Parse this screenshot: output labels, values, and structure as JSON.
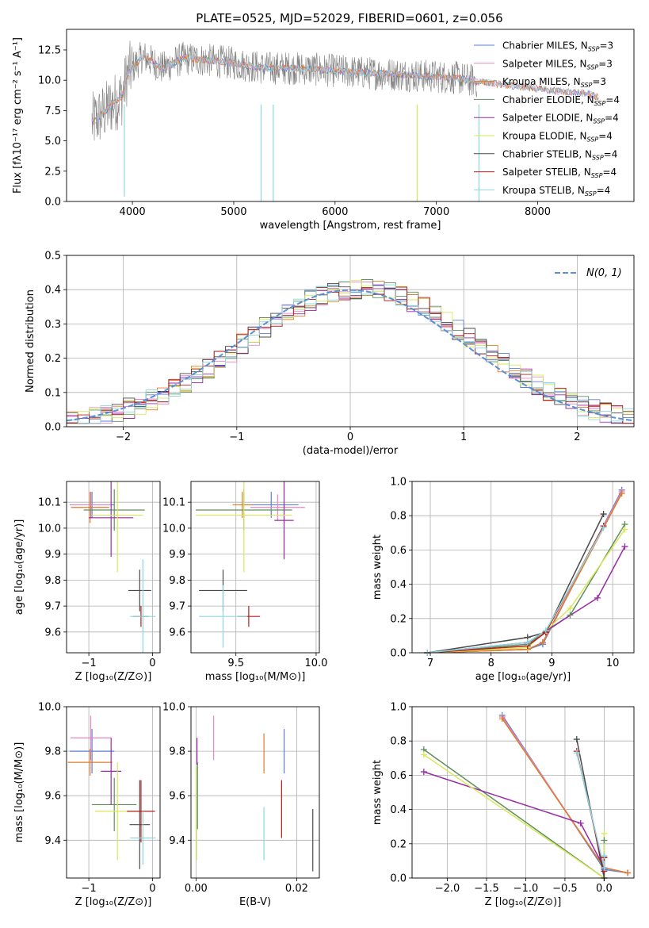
{
  "title": "PLATE=0525, MJD=52029, FIBERID=0601, z=0.056",
  "series": [
    {
      "name_pre": "Chabrier MILES, N",
      "name_sub": "SSP",
      "name_post": "=3",
      "color": "#5a7fd6"
    },
    {
      "name_pre": "Salpeter MILES, N",
      "name_sub": "SSP",
      "name_post": "=3",
      "color": "#e985c2"
    },
    {
      "name_pre": "Kroupa MILES, N",
      "name_sub": "SSP",
      "name_post": "=3",
      "color": "#e07b28"
    },
    {
      "name_pre": "Chabrier ELODIE, N",
      "name_sub": "SSP",
      "name_post": "=4",
      "color": "#5f8f5f"
    },
    {
      "name_pre": "Salpeter ELODIE, N",
      "name_sub": "SSP",
      "name_post": "=4",
      "color": "#9a2ba6"
    },
    {
      "name_pre": "Kroupa ELODIE, N",
      "name_sub": "SSP",
      "name_post": "=4",
      "color": "#d8e85a"
    },
    {
      "name_pre": "Chabrier STELIB, N",
      "name_sub": "SSP",
      "name_post": "=4",
      "color": "#4a4a4a"
    },
    {
      "name_pre": "Salpeter STELIB, N",
      "name_sub": "SSP",
      "name_post": "=4",
      "color": "#b51c1c"
    },
    {
      "name_pre": "Kroupa STELIB, N",
      "name_sub": "SSP",
      "name_post": "=4",
      "color": "#8fd6e0"
    }
  ],
  "data_color": "#808080",
  "gauss_color": "#5b8fd6",
  "chart_data": [
    {
      "id": "spectrum",
      "type": "line",
      "xlabel": "wavelength [Angstrom, rest frame]",
      "ylabel": "Flux [fλ10⁻¹⁷ erg cm⁻² s⁻¹ A⁻¹]",
      "xlim": [
        3350,
        8950
      ],
      "ylim": [
        0,
        14.2
      ],
      "xticks": [
        4000,
        5000,
        6000,
        7000,
        8000
      ],
      "yticks": [
        0.0,
        2.5,
        5.0,
        7.5,
        10.0,
        12.5
      ],
      "continuum": [
        [
          3600,
          6.5
        ],
        [
          3700,
          7.2
        ],
        [
          3800,
          8.0
        ],
        [
          3900,
          8.7
        ],
        [
          3950,
          10.5
        ],
        [
          4000,
          11.0
        ],
        [
          4100,
          12.0
        ],
        [
          4200,
          11.5
        ],
        [
          4300,
          11.0
        ],
        [
          4500,
          11.8
        ],
        [
          4800,
          11.6
        ],
        [
          5000,
          11.4
        ],
        [
          5300,
          11.0
        ],
        [
          5600,
          11.0
        ],
        [
          6000,
          10.8
        ],
        [
          6300,
          10.6
        ],
        [
          6600,
          10.5
        ],
        [
          7000,
          10.3
        ],
        [
          7200,
          10.2
        ],
        [
          7400,
          9.9
        ],
        [
          7800,
          9.5
        ],
        [
          8200,
          9.1
        ],
        [
          8500,
          8.9
        ],
        [
          8600,
          8.6
        ]
      ],
      "data_range": [
        3600,
        7400
      ],
      "data_noise": 1.4,
      "dips": [
        [
          3920,
          0.4
        ],
        [
          5270,
          0.0
        ],
        [
          5390,
          0.0
        ],
        [
          6810,
          0.0
        ],
        [
          7420,
          0.0
        ]
      ]
    },
    {
      "id": "residuals",
      "type": "area",
      "xlabel": "(data-model)/error",
      "ylabel": "Normed distribution",
      "xlim": [
        -2.5,
        2.5
      ],
      "ylim": [
        0,
        0.5
      ],
      "xticks": [
        -2,
        -1,
        0,
        1,
        2
      ],
      "yticks": [
        0.0,
        0.1,
        0.2,
        0.3,
        0.4,
        0.5
      ],
      "gauss_label": "N(0, 1)",
      "bin_width": 0.1,
      "bins_start": -2.5
    },
    {
      "id": "age_vs_z",
      "type": "scatter",
      "xlabel": "Z [log₁₀(Z/Z⊙)]",
      "ylabel": "age  [log₁₀(age/yr)]",
      "xlim": [
        -1.35,
        0.12
      ],
      "ylim": [
        9.52,
        10.18
      ],
      "xticks": [
        -1,
        0
      ],
      "yticks": [
        9.6,
        9.7,
        9.8,
        9.9,
        10.0,
        10.1
      ],
      "points": [
        {
          "s": 0,
          "x": -0.95,
          "y": 10.09,
          "dx": 0.35,
          "dy": 0.05
        },
        {
          "s": 1,
          "x": -0.97,
          "y": 10.09,
          "dx": 0.32,
          "dy": 0.05
        },
        {
          "s": 2,
          "x": -0.98,
          "y": 10.08,
          "dx": 0.3,
          "dy": 0.06
        },
        {
          "s": 3,
          "x": -0.6,
          "y": 10.07,
          "dx": 0.48,
          "dy": 0.08
        },
        {
          "s": 4,
          "x": -0.65,
          "y": 10.04,
          "dx": 0.35,
          "dy": 0.15
        },
        {
          "s": 5,
          "x": -0.55,
          "y": 10.05,
          "dx": 0.4,
          "dy": 0.22
        },
        {
          "s": 6,
          "x": -0.2,
          "y": 9.76,
          "dx": 0.18,
          "dy": 0.08
        },
        {
          "s": 7,
          "x": -0.18,
          "y": 9.66,
          "dx": 0.12,
          "dy": 0.04
        },
        {
          "s": 8,
          "x": -0.15,
          "y": 9.66,
          "dx": 0.2,
          "dy": 0.22
        }
      ]
    },
    {
      "id": "age_vs_mass",
      "type": "scatter",
      "xlabel": "mass [log₁₀(M/M⊙)]",
      "ylabel": "",
      "xlim": [
        9.22,
        10.02
      ],
      "ylim": [
        9.52,
        10.18
      ],
      "xticks": [
        9.5,
        10.0
      ],
      "yticks": [
        9.6,
        9.7,
        9.8,
        9.9,
        10.0,
        10.1
      ],
      "points": [
        {
          "s": 0,
          "x": 9.72,
          "y": 10.09,
          "dx": 0.17,
          "dy": 0.05
        },
        {
          "s": 1,
          "x": 9.76,
          "y": 10.08,
          "dx": 0.17,
          "dy": 0.05
        },
        {
          "s": 2,
          "x": 9.54,
          "y": 10.09,
          "dx": 0.06,
          "dy": 0.05
        },
        {
          "s": 3,
          "x": 9.55,
          "y": 10.07,
          "dx": 0.3,
          "dy": 0.08
        },
        {
          "s": 4,
          "x": 9.8,
          "y": 10.03,
          "dx": 0.06,
          "dy": 0.15
        },
        {
          "s": 5,
          "x": 9.55,
          "y": 10.05,
          "dx": 0.3,
          "dy": 0.22
        },
        {
          "s": 6,
          "x": 9.42,
          "y": 9.76,
          "dx": 0.15,
          "dy": 0.08
        },
        {
          "s": 7,
          "x": 9.58,
          "y": 9.66,
          "dx": 0.07,
          "dy": 0.04
        },
        {
          "s": 8,
          "x": 9.42,
          "y": 9.66,
          "dx": 0.15,
          "dy": 0.12
        }
      ]
    },
    {
      "id": "weight_vs_age",
      "type": "line",
      "xlabel": "age  [log₁₀(age/yr)]",
      "ylabel": "mass weight",
      "xlim": [
        6.7,
        10.35
      ],
      "ylim": [
        0,
        1.0
      ],
      "xticks": [
        7,
        8,
        9,
        10
      ],
      "yticks": [
        0.0,
        0.2,
        0.4,
        0.6,
        0.8,
        1.0
      ],
      "lines": [
        {
          "s": 0,
          "pts": [
            [
              6.95,
              0
            ],
            [
              8.6,
              0.02
            ],
            [
              8.85,
              0.05
            ],
            [
              10.15,
              0.95
            ]
          ]
        },
        {
          "s": 1,
          "pts": [
            [
              6.95,
              0
            ],
            [
              8.6,
              0.02
            ],
            [
              8.85,
              0.06
            ],
            [
              10.15,
              0.94
            ]
          ]
        },
        {
          "s": 2,
          "pts": [
            [
              6.95,
              0
            ],
            [
              8.6,
              0.02
            ],
            [
              8.85,
              0.06
            ],
            [
              10.15,
              0.93
            ]
          ]
        },
        {
          "s": 3,
          "pts": [
            [
              6.95,
              0
            ],
            [
              8.6,
              0.05
            ],
            [
              9.3,
              0.22
            ],
            [
              10.2,
              0.75
            ]
          ]
        },
        {
          "s": 4,
          "pts": [
            [
              6.95,
              0
            ],
            [
              8.6,
              0.06
            ],
            [
              9.75,
              0.32
            ],
            [
              10.2,
              0.62
            ]
          ]
        },
        {
          "s": 5,
          "pts": [
            [
              6.95,
              0
            ],
            [
              8.6,
              0.03
            ],
            [
              9.3,
              0.26
            ],
            [
              10.2,
              0.72
            ]
          ]
        },
        {
          "s": 6,
          "pts": [
            [
              6.95,
              0
            ],
            [
              8.6,
              0.09
            ],
            [
              8.9,
              0.12
            ],
            [
              9.85,
              0.81
            ]
          ]
        },
        {
          "s": 7,
          "pts": [
            [
              6.95,
              0
            ],
            [
              8.6,
              0.04
            ],
            [
              8.9,
              0.12
            ],
            [
              9.85,
              0.74
            ]
          ]
        },
        {
          "s": 8,
          "pts": [
            [
              6.95,
              0
            ],
            [
              8.6,
              0.06
            ],
            [
              8.9,
              0.13
            ],
            [
              9.85,
              0.73
            ]
          ]
        }
      ]
    },
    {
      "id": "mass_vs_z",
      "type": "scatter",
      "xlabel": "Z [log₁₀(Z/Z⊙)]",
      "ylabel": "mass [log₁₀(M/M⊙)]",
      "xlim": [
        -1.35,
        0.12
      ],
      "ylim": [
        9.23,
        10.0
      ],
      "xticks": [
        -1,
        0
      ],
      "yticks": [
        9.4,
        9.6,
        9.8,
        10.0
      ],
      "points": [
        {
          "s": 0,
          "x": -0.95,
          "y": 9.8,
          "dx": 0.35,
          "dy": 0.1
        },
        {
          "s": 1,
          "x": -0.97,
          "y": 9.86,
          "dx": 0.32,
          "dy": 0.1
        },
        {
          "s": 2,
          "x": -0.98,
          "y": 9.75,
          "dx": 0.35,
          "dy": 0.06
        },
        {
          "s": 3,
          "x": -0.6,
          "y": 9.56,
          "dx": 0.35,
          "dy": 0.12
        },
        {
          "s": 4,
          "x": -0.65,
          "y": 9.71,
          "dx": 0.16,
          "dy": 0.15
        },
        {
          "s": 5,
          "x": -0.55,
          "y": 9.53,
          "dx": 0.35,
          "dy": 0.22
        },
        {
          "s": 6,
          "x": -0.2,
          "y": 9.47,
          "dx": 0.16,
          "dy": 0.2
        },
        {
          "s": 7,
          "x": -0.18,
          "y": 9.53,
          "dx": 0.22,
          "dy": 0.14
        },
        {
          "s": 8,
          "x": -0.15,
          "y": 9.41,
          "dx": 0.2,
          "dy": 0.12
        }
      ]
    },
    {
      "id": "mass_vs_ebv",
      "type": "scatter",
      "xlabel": "E(B-V)",
      "ylabel": "",
      "xlim": [
        -0.001,
        0.0245
      ],
      "ylim": [
        9.23,
        10.0
      ],
      "xticks": [
        0.0,
        0.02
      ],
      "yticks": [
        9.4,
        9.6,
        9.8,
        10.0
      ],
      "points": [
        {
          "s": 0,
          "x": 0.0175,
          "y": 9.8,
          "dx": 0,
          "dy": 0.1
        },
        {
          "s": 1,
          "x": 0.0035,
          "y": 9.86,
          "dx": 0,
          "dy": 0.1
        },
        {
          "s": 2,
          "x": 0.0135,
          "y": 9.79,
          "dx": 0,
          "dy": 0.09
        },
        {
          "s": 3,
          "x": 0.0003,
          "y": 9.6,
          "dx": 0,
          "dy": 0.15
        },
        {
          "s": 4,
          "x": 0.0002,
          "y": 9.8,
          "dx": 0,
          "dy": 0.06
        },
        {
          "s": 5,
          "x": 0.0001,
          "y": 9.52,
          "dx": 0,
          "dy": 0.21
        },
        {
          "s": 6,
          "x": 0.0232,
          "y": 9.4,
          "dx": 0,
          "dy": 0.14
        },
        {
          "s": 7,
          "x": 0.017,
          "y": 9.54,
          "dx": 0,
          "dy": 0.13
        },
        {
          "s": 8,
          "x": 0.0135,
          "y": 9.43,
          "dx": 0,
          "dy": 0.12
        }
      ]
    },
    {
      "id": "weight_vs_z",
      "type": "line",
      "xlabel": "Z [log₁₀(Z/Z⊙)]",
      "ylabel": "mass weight",
      "xlim": [
        -2.45,
        0.38
      ],
      "ylim": [
        0,
        1.0
      ],
      "xticks": [
        -2.0,
        -1.5,
        -1.0,
        -0.5,
        0.0
      ],
      "yticks": [
        0.0,
        0.2,
        0.4,
        0.6,
        0.8,
        1.0
      ],
      "lines": [
        {
          "s": 0,
          "pts": [
            [
              -1.3,
              0.95
            ],
            [
              0.0,
              0.05
            ],
            [
              0.3,
              0.03
            ]
          ]
        },
        {
          "s": 1,
          "pts": [
            [
              -1.3,
              0.94
            ],
            [
              0.0,
              0.06
            ],
            [
              0.3,
              0.03
            ]
          ]
        },
        {
          "s": 2,
          "pts": [
            [
              -1.3,
              0.93
            ],
            [
              0.0,
              0.06
            ],
            [
              0.3,
              0.03
            ]
          ]
        },
        {
          "s": 3,
          "pts": [
            [
              -2.3,
              0.75
            ],
            [
              0.0,
              0.0
            ],
            [
              0.0,
              0.22
            ]
          ]
        },
        {
          "s": 4,
          "pts": [
            [
              -2.3,
              0.62
            ],
            [
              -0.3,
              0.32
            ],
            [
              0.0,
              0.06
            ]
          ]
        },
        {
          "s": 5,
          "pts": [
            [
              -2.3,
              0.72
            ],
            [
              0.0,
              0.0
            ],
            [
              0.0,
              0.26
            ]
          ]
        },
        {
          "s": 6,
          "pts": [
            [
              -0.35,
              0.81
            ],
            [
              0.0,
              0.0
            ],
            [
              0.0,
              0.12
            ]
          ]
        },
        {
          "s": 7,
          "pts": [
            [
              -0.35,
              0.74
            ],
            [
              0.0,
              0.04
            ],
            [
              0.0,
              0.12
            ]
          ]
        },
        {
          "s": 8,
          "pts": [
            [
              -0.35,
              0.73
            ],
            [
              0.0,
              0.06
            ],
            [
              0.0,
              0.13
            ]
          ]
        }
      ]
    }
  ]
}
